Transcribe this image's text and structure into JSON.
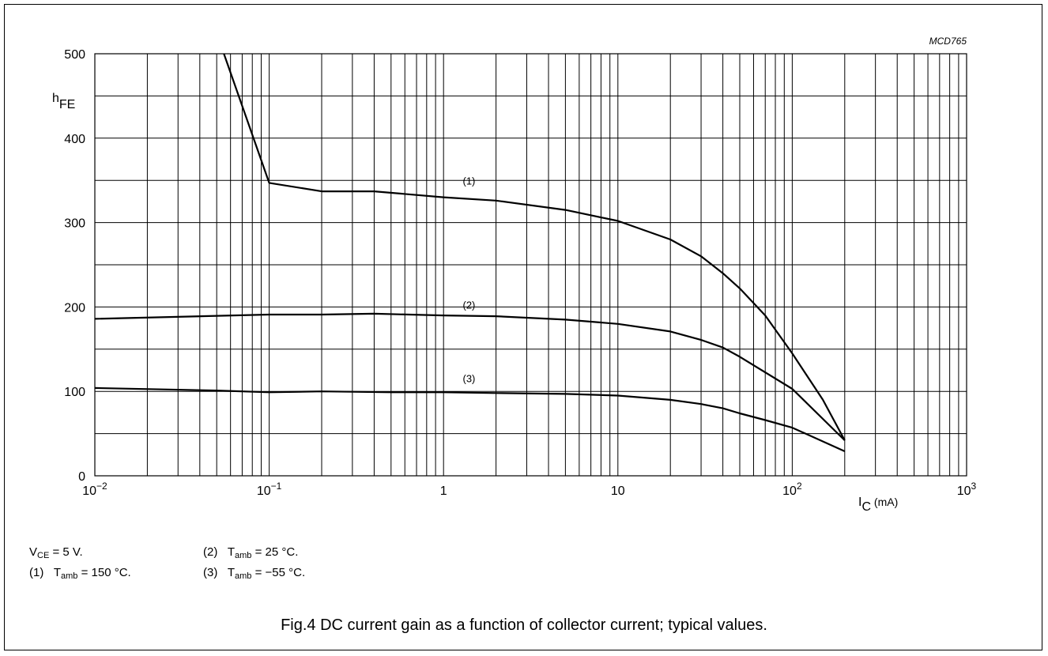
{
  "chart_data": {
    "type": "line",
    "code": "MCD765",
    "xscale": "log",
    "xlim": [
      0.01,
      1000
    ],
    "ylim": [
      0,
      500
    ],
    "grid": true,
    "x_tick_labels": [
      {
        "value": 0.01,
        "base": "10",
        "exp": "−2"
      },
      {
        "value": 0.1,
        "base": "10",
        "exp": "−1"
      },
      {
        "value": 1,
        "base": "1",
        "exp": ""
      },
      {
        "value": 10,
        "base": "10",
        "exp": ""
      },
      {
        "value": 100,
        "base": "10",
        "exp": "2"
      },
      {
        "value": 1000,
        "base": "10",
        "exp": "3"
      }
    ],
    "y_ticks": [
      0,
      100,
      200,
      300,
      400,
      500
    ],
    "ylabel": {
      "main": "h",
      "sub": "FE"
    },
    "xlabel": {
      "main": "I",
      "sub": "C",
      "unit": " (mA)"
    },
    "series": [
      {
        "name": "(1)",
        "label_at": [
          1.4,
          345
        ],
        "points": [
          [
            0.055,
            500
          ],
          [
            0.1,
            347
          ],
          [
            0.2,
            337
          ],
          [
            0.4,
            337
          ],
          [
            1,
            330
          ],
          [
            2,
            326
          ],
          [
            5,
            315
          ],
          [
            10,
            302
          ],
          [
            20,
            280
          ],
          [
            30,
            260
          ],
          [
            40,
            240
          ],
          [
            50,
            222
          ],
          [
            70,
            190
          ],
          [
            100,
            145
          ],
          [
            150,
            90
          ],
          [
            200,
            42
          ]
        ]
      },
      {
        "name": "(2)",
        "label_at": [
          1.4,
          198
        ],
        "points": [
          [
            0.01,
            186
          ],
          [
            0.1,
            191
          ],
          [
            0.2,
            191
          ],
          [
            0.4,
            192
          ],
          [
            1,
            190
          ],
          [
            2,
            189
          ],
          [
            5,
            185
          ],
          [
            10,
            180
          ],
          [
            20,
            171
          ],
          [
            30,
            161
          ],
          [
            40,
            152
          ],
          [
            50,
            141
          ],
          [
            100,
            103
          ],
          [
            200,
            42
          ]
        ]
      },
      {
        "name": "(3)",
        "label_at": [
          1.4,
          111
        ],
        "points": [
          [
            0.01,
            104
          ],
          [
            0.05,
            101
          ],
          [
            0.1,
            99
          ],
          [
            0.2,
            100
          ],
          [
            0.5,
            99
          ],
          [
            1,
            99
          ],
          [
            2,
            98
          ],
          [
            5,
            97
          ],
          [
            10,
            95
          ],
          [
            20,
            90
          ],
          [
            30,
            85
          ],
          [
            40,
            80
          ],
          [
            50,
            74
          ],
          [
            70,
            66
          ],
          [
            100,
            57
          ],
          [
            200,
            29
          ]
        ]
      }
    ]
  },
  "notes": {
    "vce": {
      "main": "V",
      "sub": "CE",
      "rest": " = 5 V."
    },
    "n1": {
      "num": "(1)",
      "main": "T",
      "sub": "amb",
      "rest": " = 150 °C."
    },
    "n2": {
      "num": "(2)",
      "main": "T",
      "sub": "amb",
      "rest": " = 25 °C."
    },
    "n3": {
      "num": "(3)",
      "main": "T",
      "sub": "amb",
      "rest": " = −55 °C."
    }
  },
  "caption": "Fig.4  DC current gain as a function of collector current; typical values."
}
